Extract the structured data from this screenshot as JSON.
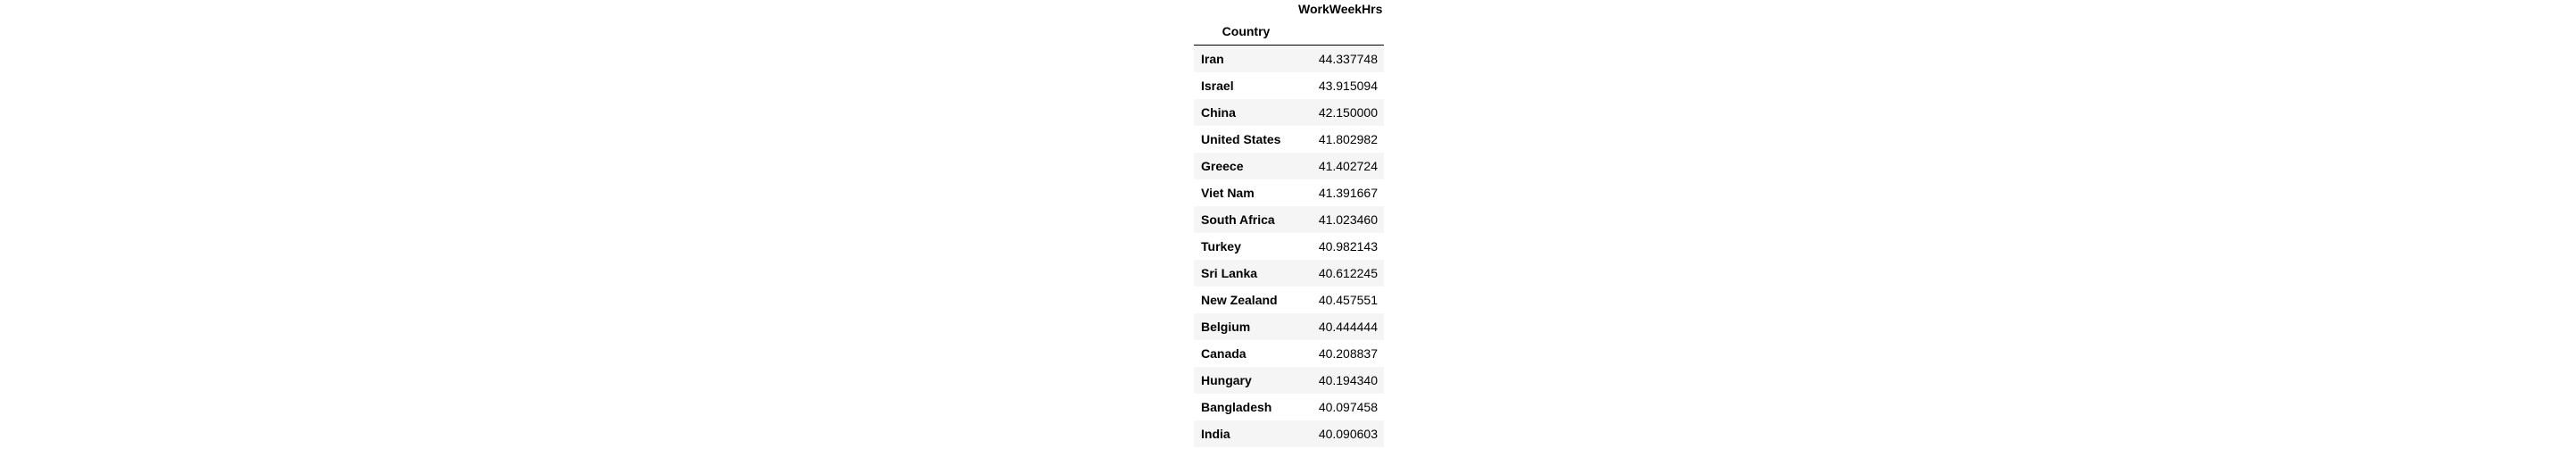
{
  "table": {
    "column_header": "WorkWeekHrs",
    "index_name": "Country",
    "rows": [
      {
        "country": "Iran",
        "value": "44.337748"
      },
      {
        "country": "Israel",
        "value": "43.915094"
      },
      {
        "country": "China",
        "value": "42.150000"
      },
      {
        "country": "United States",
        "value": "41.802982"
      },
      {
        "country": "Greece",
        "value": "41.402724"
      },
      {
        "country": "Viet Nam",
        "value": "41.391667"
      },
      {
        "country": "South Africa",
        "value": "41.023460"
      },
      {
        "country": "Turkey",
        "value": "40.982143"
      },
      {
        "country": "Sri Lanka",
        "value": "40.612245"
      },
      {
        "country": "New Zealand",
        "value": "40.457551"
      },
      {
        "country": "Belgium",
        "value": "40.444444"
      },
      {
        "country": "Canada",
        "value": "40.208837"
      },
      {
        "country": "Hungary",
        "value": "40.194340"
      },
      {
        "country": "Bangladesh",
        "value": "40.097458"
      },
      {
        "country": "India",
        "value": "40.090603"
      }
    ]
  }
}
